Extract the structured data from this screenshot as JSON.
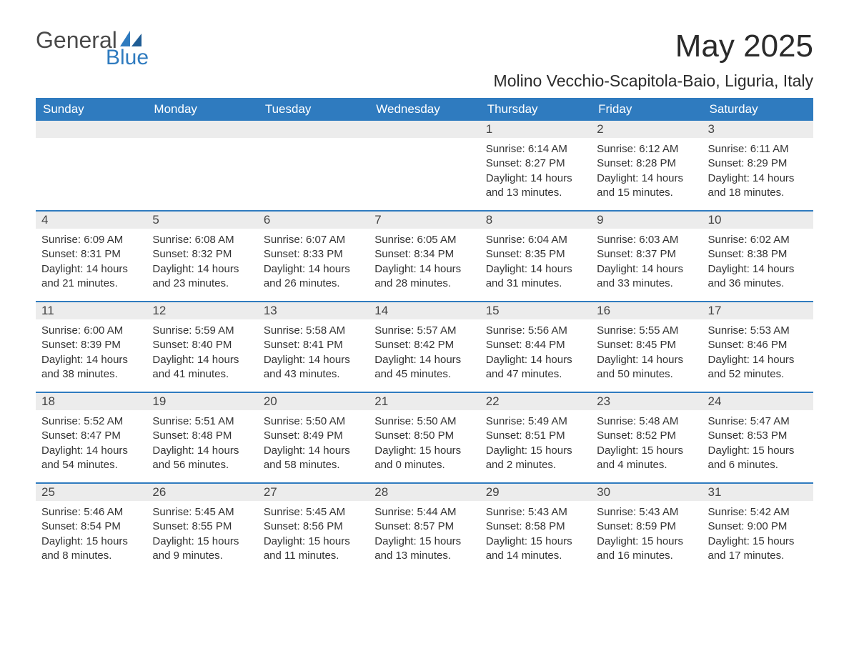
{
  "brand": {
    "word1": "General",
    "word2": "Blue",
    "color1": "#4a4a4a",
    "color2": "#2f7bbf"
  },
  "title": "May 2025",
  "location": "Molino Vecchio-Scapitola-Baio, Liguria, Italy",
  "style": {
    "header_bg": "#2f7bbf",
    "header_text": "#ffffff",
    "daynum_bg": "#ececec",
    "week_border": "#2f7bbf",
    "body_text_fontsize": 15,
    "header_fontsize": 17,
    "daynum_fontsize": 17,
    "title_fontsize": 44,
    "location_fontsize": 23
  },
  "columns": [
    "Sunday",
    "Monday",
    "Tuesday",
    "Wednesday",
    "Thursday",
    "Friday",
    "Saturday"
  ],
  "weeks": [
    [
      null,
      null,
      null,
      null,
      {
        "n": "1",
        "sunrise": "Sunrise: 6:14 AM",
        "sunset": "Sunset: 8:27 PM",
        "day": "Daylight: 14 hours and 13 minutes."
      },
      {
        "n": "2",
        "sunrise": "Sunrise: 6:12 AM",
        "sunset": "Sunset: 8:28 PM",
        "day": "Daylight: 14 hours and 15 minutes."
      },
      {
        "n": "3",
        "sunrise": "Sunrise: 6:11 AM",
        "sunset": "Sunset: 8:29 PM",
        "day": "Daylight: 14 hours and 18 minutes."
      }
    ],
    [
      {
        "n": "4",
        "sunrise": "Sunrise: 6:09 AM",
        "sunset": "Sunset: 8:31 PM",
        "day": "Daylight: 14 hours and 21 minutes."
      },
      {
        "n": "5",
        "sunrise": "Sunrise: 6:08 AM",
        "sunset": "Sunset: 8:32 PM",
        "day": "Daylight: 14 hours and 23 minutes."
      },
      {
        "n": "6",
        "sunrise": "Sunrise: 6:07 AM",
        "sunset": "Sunset: 8:33 PM",
        "day": "Daylight: 14 hours and 26 minutes."
      },
      {
        "n": "7",
        "sunrise": "Sunrise: 6:05 AM",
        "sunset": "Sunset: 8:34 PM",
        "day": "Daylight: 14 hours and 28 minutes."
      },
      {
        "n": "8",
        "sunrise": "Sunrise: 6:04 AM",
        "sunset": "Sunset: 8:35 PM",
        "day": "Daylight: 14 hours and 31 minutes."
      },
      {
        "n": "9",
        "sunrise": "Sunrise: 6:03 AM",
        "sunset": "Sunset: 8:37 PM",
        "day": "Daylight: 14 hours and 33 minutes."
      },
      {
        "n": "10",
        "sunrise": "Sunrise: 6:02 AM",
        "sunset": "Sunset: 8:38 PM",
        "day": "Daylight: 14 hours and 36 minutes."
      }
    ],
    [
      {
        "n": "11",
        "sunrise": "Sunrise: 6:00 AM",
        "sunset": "Sunset: 8:39 PM",
        "day": "Daylight: 14 hours and 38 minutes."
      },
      {
        "n": "12",
        "sunrise": "Sunrise: 5:59 AM",
        "sunset": "Sunset: 8:40 PM",
        "day": "Daylight: 14 hours and 41 minutes."
      },
      {
        "n": "13",
        "sunrise": "Sunrise: 5:58 AM",
        "sunset": "Sunset: 8:41 PM",
        "day": "Daylight: 14 hours and 43 minutes."
      },
      {
        "n": "14",
        "sunrise": "Sunrise: 5:57 AM",
        "sunset": "Sunset: 8:42 PM",
        "day": "Daylight: 14 hours and 45 minutes."
      },
      {
        "n": "15",
        "sunrise": "Sunrise: 5:56 AM",
        "sunset": "Sunset: 8:44 PM",
        "day": "Daylight: 14 hours and 47 minutes."
      },
      {
        "n": "16",
        "sunrise": "Sunrise: 5:55 AM",
        "sunset": "Sunset: 8:45 PM",
        "day": "Daylight: 14 hours and 50 minutes."
      },
      {
        "n": "17",
        "sunrise": "Sunrise: 5:53 AM",
        "sunset": "Sunset: 8:46 PM",
        "day": "Daylight: 14 hours and 52 minutes."
      }
    ],
    [
      {
        "n": "18",
        "sunrise": "Sunrise: 5:52 AM",
        "sunset": "Sunset: 8:47 PM",
        "day": "Daylight: 14 hours and 54 minutes."
      },
      {
        "n": "19",
        "sunrise": "Sunrise: 5:51 AM",
        "sunset": "Sunset: 8:48 PM",
        "day": "Daylight: 14 hours and 56 minutes."
      },
      {
        "n": "20",
        "sunrise": "Sunrise: 5:50 AM",
        "sunset": "Sunset: 8:49 PM",
        "day": "Daylight: 14 hours and 58 minutes."
      },
      {
        "n": "21",
        "sunrise": "Sunrise: 5:50 AM",
        "sunset": "Sunset: 8:50 PM",
        "day": "Daylight: 15 hours and 0 minutes."
      },
      {
        "n": "22",
        "sunrise": "Sunrise: 5:49 AM",
        "sunset": "Sunset: 8:51 PM",
        "day": "Daylight: 15 hours and 2 minutes."
      },
      {
        "n": "23",
        "sunrise": "Sunrise: 5:48 AM",
        "sunset": "Sunset: 8:52 PM",
        "day": "Daylight: 15 hours and 4 minutes."
      },
      {
        "n": "24",
        "sunrise": "Sunrise: 5:47 AM",
        "sunset": "Sunset: 8:53 PM",
        "day": "Daylight: 15 hours and 6 minutes."
      }
    ],
    [
      {
        "n": "25",
        "sunrise": "Sunrise: 5:46 AM",
        "sunset": "Sunset: 8:54 PM",
        "day": "Daylight: 15 hours and 8 minutes."
      },
      {
        "n": "26",
        "sunrise": "Sunrise: 5:45 AM",
        "sunset": "Sunset: 8:55 PM",
        "day": "Daylight: 15 hours and 9 minutes."
      },
      {
        "n": "27",
        "sunrise": "Sunrise: 5:45 AM",
        "sunset": "Sunset: 8:56 PM",
        "day": "Daylight: 15 hours and 11 minutes."
      },
      {
        "n": "28",
        "sunrise": "Sunrise: 5:44 AM",
        "sunset": "Sunset: 8:57 PM",
        "day": "Daylight: 15 hours and 13 minutes."
      },
      {
        "n": "29",
        "sunrise": "Sunrise: 5:43 AM",
        "sunset": "Sunset: 8:58 PM",
        "day": "Daylight: 15 hours and 14 minutes."
      },
      {
        "n": "30",
        "sunrise": "Sunrise: 5:43 AM",
        "sunset": "Sunset: 8:59 PM",
        "day": "Daylight: 15 hours and 16 minutes."
      },
      {
        "n": "31",
        "sunrise": "Sunrise: 5:42 AM",
        "sunset": "Sunset: 9:00 PM",
        "day": "Daylight: 15 hours and 17 minutes."
      }
    ]
  ]
}
